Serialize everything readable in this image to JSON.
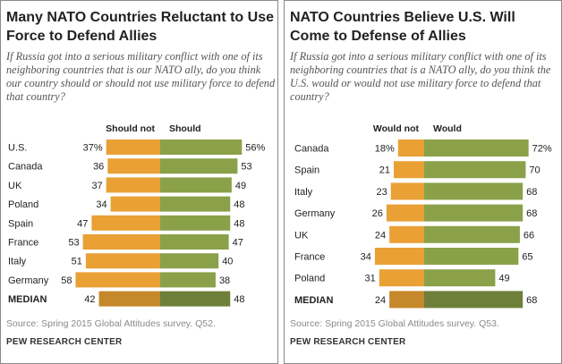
{
  "colors": {
    "no": "#e9a035",
    "yes": "#8aa14a",
    "median_no": "#c5882a",
    "median_yes": "#6e7f3a"
  },
  "panels": [
    {
      "title": "Many NATO Countries Reluctant to Use Force to Defend Allies",
      "subtitle": "If Russia got into a serious military conflict with one of its neighboring countries that is our NATO ally, do you think our country should or should not use military force to defend that country?",
      "source": "Source: Spring 2015 Global Attitudes survey. Q52.",
      "org": "PEW RESEARCH CENTER"
    },
    {
      "title": "NATO Countries Believe U.S. Will Come to Defense of Allies",
      "subtitle": "If Russia got into a serious military conflict with one of its neighboring countries that is a NATO ally, do you think the U.S. would or would not use military force to defend that country?",
      "source": "Source: Spring 2015 Global Attitudes survey. Q53.",
      "org": "PEW RESEARCH CENTER"
    }
  ],
  "chart_data": [
    {
      "type": "bar",
      "orientation": "diverging-horizontal",
      "series_labels": [
        "Should not",
        "Should"
      ],
      "categories": [
        "U.S.",
        "Canada",
        "UK",
        "Poland",
        "Spain",
        "France",
        "Italy",
        "Germany",
        "MEDIAN"
      ],
      "series": [
        {
          "name": "Should not",
          "values": [
            37,
            36,
            37,
            34,
            47,
            53,
            51,
            58,
            42
          ],
          "labels": [
            "37%",
            "36",
            "37",
            "34",
            "47",
            "53",
            "51",
            "58",
            "42"
          ]
        },
        {
          "name": "Should",
          "values": [
            56,
            53,
            49,
            48,
            48,
            47,
            40,
            38,
            48
          ],
          "labels": [
            "56%",
            "53",
            "49",
            "48",
            "48",
            "47",
            "40",
            "38",
            "48"
          ]
        }
      ]
    },
    {
      "type": "bar",
      "orientation": "diverging-horizontal",
      "series_labels": [
        "Would not",
        "Would"
      ],
      "categories": [
        "Canada",
        "Spain",
        "Italy",
        "Germany",
        "UK",
        "France",
        "Poland",
        "MEDIAN"
      ],
      "series": [
        {
          "name": "Would not",
          "values": [
            18,
            21,
            23,
            26,
            24,
            34,
            31,
            24
          ],
          "labels": [
            "18%",
            "21",
            "23",
            "26",
            "24",
            "34",
            "31",
            "24"
          ]
        },
        {
          "name": "Would",
          "values": [
            72,
            70,
            68,
            68,
            66,
            65,
            49,
            68
          ],
          "labels": [
            "72%",
            "70",
            "68",
            "68",
            "66",
            "65",
            "49",
            "68"
          ]
        }
      ]
    }
  ]
}
